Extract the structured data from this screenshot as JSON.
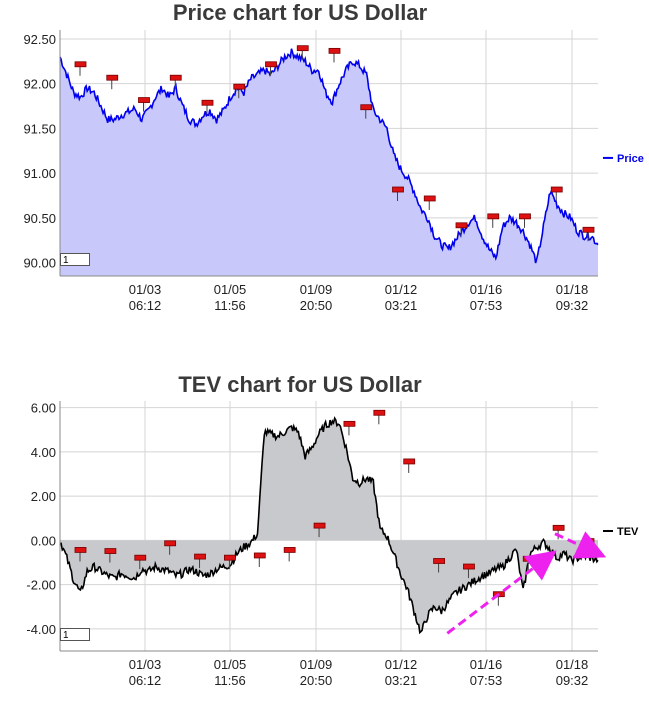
{
  "chart_data": [
    {
      "type": "area",
      "title": "Price chart for US Dollar",
      "x_tick_labels": [
        [
          "01/03",
          "06:12"
        ],
        [
          "01/05",
          "11:56"
        ],
        [
          "01/09",
          "20:50"
        ],
        [
          "01/12",
          "03:21"
        ],
        [
          "01/16",
          "07:53"
        ],
        [
          "01/18",
          "09:32"
        ]
      ],
      "y_ticks": [
        90.0,
        90.5,
        91.0,
        91.5,
        92.0,
        92.5
      ],
      "y_tick_labels": [
        "90.00",
        "90.50",
        "91.00",
        "91.50",
        "92.00",
        "92.50"
      ],
      "ylim": [
        89.85,
        92.6
      ],
      "legend": "Price",
      "legend_position": "right",
      "grid": true,
      "series": [
        {
          "name": "Price",
          "color": "#0000ee",
          "fill": "#c8c8fa",
          "values": [
            92.3,
            92.1,
            91.9,
            91.85,
            91.95,
            91.9,
            91.75,
            91.6,
            91.6,
            91.65,
            91.68,
            91.72,
            91.6,
            91.7,
            91.85,
            91.95,
            91.85,
            91.95,
            91.75,
            91.6,
            91.55,
            91.65,
            91.7,
            91.6,
            91.7,
            91.85,
            91.95,
            91.9,
            92.05,
            92.1,
            92.15,
            92.1,
            92.2,
            92.3,
            92.35,
            92.3,
            92.25,
            92.15,
            92.15,
            91.9,
            91.8,
            92.0,
            92.15,
            92.25,
            92.2,
            92.1,
            91.7,
            91.6,
            91.5,
            91.2,
            91.05,
            90.95,
            90.8,
            90.6,
            90.5,
            90.3,
            90.2,
            90.15,
            90.25,
            90.35,
            90.45,
            90.5,
            90.3,
            90.15,
            90.05,
            90.4,
            90.5,
            90.45,
            90.35,
            90.2,
            90.0,
            90.4,
            90.8,
            90.65,
            90.55,
            90.5,
            90.35,
            90.3,
            90.3,
            90.2
          ],
          "event_markers": [
            92.2,
            92.05,
            91.8,
            92.05,
            91.77,
            91.95,
            92.2,
            92.38,
            92.35,
            91.72,
            90.8,
            90.7,
            90.4,
            90.5,
            90.5,
            90.8,
            90.35
          ]
        }
      ]
    },
    {
      "type": "area",
      "title": "TEV chart for US Dollar",
      "x_tick_labels": [
        [
          "01/03",
          "06:12"
        ],
        [
          "01/05",
          "11:56"
        ],
        [
          "01/09",
          "20:50"
        ],
        [
          "01/12",
          "03:21"
        ],
        [
          "01/16",
          "07:53"
        ],
        [
          "01/18",
          "09:32"
        ]
      ],
      "y_ticks": [
        -4.0,
        -2.0,
        0.0,
        2.0,
        4.0,
        6.0
      ],
      "y_tick_labels": [
        "-4.00",
        "-2.00",
        "0.00",
        "2.00",
        "4.00",
        "6.00"
      ],
      "ylim": [
        -5.0,
        6.3
      ],
      "legend": "TEV",
      "legend_position": "right",
      "grid": true,
      "series": [
        {
          "name": "TEV",
          "color": "#000000",
          "fill": "#c8c9cc",
          "values": [
            0.0,
            -0.8,
            -1.8,
            -2.4,
            -1.4,
            -1.2,
            -1.4,
            -1.6,
            -1.7,
            -1.5,
            -1.6,
            -1.7,
            -1.3,
            -1.4,
            -1.2,
            -1.3,
            -1.4,
            -1.6,
            -1.5,
            -1.3,
            -1.4,
            -1.6,
            -1.5,
            -1.3,
            -1.2,
            -1.1,
            -0.6,
            -0.3,
            -0.1,
            0.3,
            4.9,
            4.8,
            4.7,
            4.9,
            5.1,
            4.9,
            3.8,
            4.2,
            4.8,
            5.2,
            5.4,
            5.3,
            4.2,
            2.8,
            2.6,
            2.8,
            2.6,
            0.5,
            0.2,
            -0.6,
            -1.5,
            -2.2,
            -3.2,
            -4.2,
            -3.4,
            -3.0,
            -3.2,
            -2.8,
            -2.4,
            -2.2,
            -2.0,
            -1.8,
            -1.6,
            -1.5,
            -1.3,
            -1.2,
            -0.8,
            -0.4,
            -2.3,
            -0.6,
            -0.3,
            -0.1,
            -0.4,
            -0.8,
            -0.6,
            -0.9,
            -0.8,
            -0.7,
            -0.8,
            -0.9
          ],
          "event_markers": [
            -0.5,
            -0.55,
            -0.85,
            -0.2,
            -0.8,
            -0.85,
            -0.75,
            -0.5,
            0.6,
            5.2,
            5.7,
            3.5,
            -1.0,
            -1.25,
            -2.5,
            -0.9,
            0.5,
            -0.1
          ]
        }
      ],
      "annotations": [
        {
          "type": "dashed-arrow",
          "color": "#ee22ee",
          "from": [
            0.72,
            -4.2
          ],
          "to": [
            0.91,
            -0.7
          ]
        },
        {
          "type": "dashed-arrow",
          "color": "#ee22ee",
          "from": [
            0.92,
            0.3
          ],
          "to": [
            1.0,
            -0.6
          ]
        }
      ]
    }
  ],
  "range_box_value": "1"
}
